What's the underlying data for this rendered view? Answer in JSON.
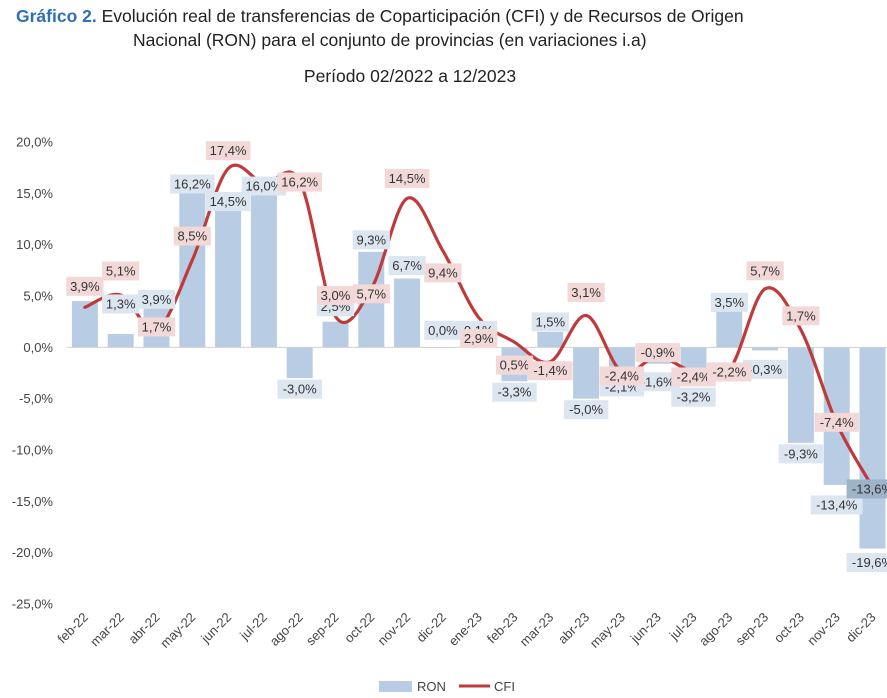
{
  "header": {
    "title_prefix": "Gráfico 2.",
    "title_line1": " Evolución real de transferencias de Coparticipación (CFI) y de Recursos de Origen",
    "title_line2": "Nacional (RON) para el conjunto de provincias (en variaciones i.a)",
    "subtitle": "Período 02/2022 a 12/2023"
  },
  "chart_data": {
    "type": "bar",
    "categories": [
      "feb-22",
      "mar-22",
      "abr-22",
      "may-22",
      "jun-22",
      "jul-22",
      "ago-22",
      "sep-22",
      "oct-22",
      "nov-22",
      "dic-22",
      "ene-23",
      "feb-23",
      "mar-23",
      "abr-23",
      "may-23",
      "jun-23",
      "jul-23",
      "ago-23",
      "sep-23",
      "oct-23",
      "nov-23",
      "dic-23"
    ],
    "series": [
      {
        "name": "RON",
        "kind": "bar",
        "color": "#b8cce4",
        "values": [
          4.5,
          1.3,
          3.9,
          16.2,
          14.5,
          16.0,
          -3.0,
          2.5,
          9.3,
          6.7,
          0.0,
          0.1,
          -3.3,
          1.5,
          -5.0,
          -2.1,
          -1.6,
          -3.2,
          3.5,
          -0.3,
          -9.3,
          -13.4,
          -19.6
        ],
        "labels": [
          "",
          "1,3%",
          "3,9%",
          "16,2%",
          "14,5%",
          "16,0%",
          "-3,0%",
          "2,5%",
          "9,3%",
          "6,7%",
          "0,0%",
          "0,1%",
          "-3,3%",
          "1,5%",
          "-5,0%",
          "-2,1%",
          "-1,6%",
          "-3,2%",
          "3,5%",
          "-0,3%",
          "-9,3%",
          "-13,4%",
          "-19,6%"
        ]
      },
      {
        "name": "CFI",
        "kind": "line",
        "color": "#c0393b",
        "values": [
          3.9,
          5.1,
          1.7,
          8.5,
          17.4,
          16.0,
          16.2,
          3.0,
          5.7,
          14.5,
          9.4,
          2.9,
          0.5,
          -1.4,
          3.1,
          -2.4,
          -0.9,
          -2.4,
          -2.2,
          5.7,
          1.7,
          -7.4,
          -13.6
        ],
        "labels": [
          "3,9%",
          "5,1%",
          "1,7%",
          "8,5%",
          "17,4%",
          "",
          "16,2%",
          "3,0%",
          "5,7%",
          "14,5%",
          "9,4%",
          "2,9%",
          "0,5%",
          "-1,4%",
          "3,1%",
          "-2,4%",
          "-0,9%",
          "-2,4%",
          "-2,2%",
          "5,7%",
          "1,7%",
          "-7,4%",
          "-13,6%"
        ]
      }
    ],
    "y_ticks": [
      "20,0%",
      "15,0%",
      "10,0%",
      "5,0%",
      "0,0%",
      "-5,0%",
      "-10,0%",
      "-15,0%",
      "-20,0%",
      "-25,0%"
    ],
    "ylim": [
      -25,
      20
    ],
    "legend": {
      "position": "bottom",
      "items": [
        "RON",
        "CFI"
      ]
    },
    "grid": false
  }
}
